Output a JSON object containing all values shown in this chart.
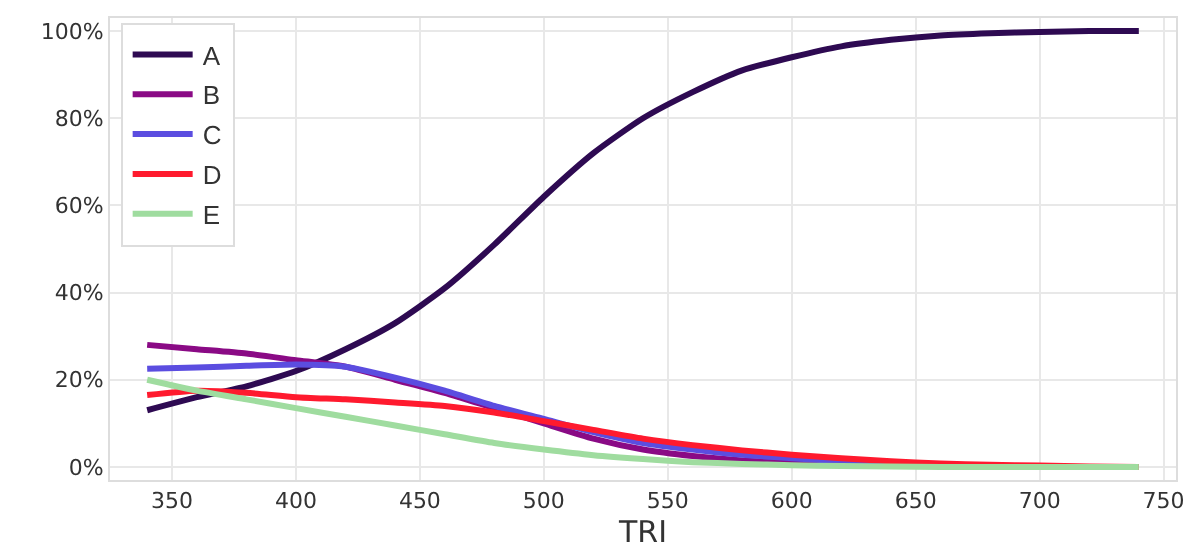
{
  "chart_data": {
    "type": "line",
    "xlabel": "TRI",
    "x": [
      340,
      360,
      380,
      400,
      420,
      440,
      460,
      480,
      500,
      520,
      540,
      560,
      580,
      600,
      620,
      640,
      660,
      680,
      700,
      720,
      740
    ],
    "series": [
      {
        "name": "A",
        "color": "#2e0a52",
        "values": [
          13,
          16,
          18.5,
          22,
          27,
          33,
          41,
          51,
          62,
          72,
          80,
          86,
          91,
          94,
          96.5,
          98,
          99,
          99.5,
          99.8,
          100,
          100
        ]
      },
      {
        "name": "B",
        "color": "#8a0a85",
        "values": [
          28,
          27,
          26,
          24.5,
          23,
          20,
          17,
          13.5,
          10,
          6.5,
          4,
          2.5,
          1.5,
          1,
          0.6,
          0.4,
          0.2,
          null,
          null,
          null,
          null
        ]
      },
      {
        "name": "C",
        "color": "#5b4de0",
        "values": [
          22.5,
          22.8,
          23.2,
          23.5,
          23,
          20.5,
          17.5,
          14,
          11,
          8,
          5.5,
          4,
          2.8,
          2,
          1.3,
          0.8,
          null,
          null,
          null,
          null,
          null
        ]
      },
      {
        "name": "D",
        "color": "#ff1a2e",
        "values": [
          16.5,
          17.5,
          17,
          16,
          15.5,
          14.8,
          14,
          12.5,
          10.5,
          8.5,
          6.5,
          5,
          3.8,
          2.8,
          2,
          1.3,
          0.8,
          0.5,
          0.3,
          0.1,
          0
        ]
      },
      {
        "name": "E",
        "color": "#9fdc9f",
        "values": [
          20,
          17.5,
          15.5,
          13.5,
          11.5,
          9.5,
          7.5,
          5.5,
          4,
          2.7,
          1.8,
          1.1,
          0.7,
          0.4,
          0.2,
          0.1,
          0,
          0,
          0,
          0,
          0
        ]
      }
    ],
    "xlim": [
      325,
      755
    ],
    "xticks": [
      350,
      400,
      450,
      500,
      550,
      600,
      650,
      700,
      750
    ],
    "ylim": [
      -3,
      103
    ],
    "yticks": [
      {
        "value": 0,
        "label": "0%"
      },
      {
        "value": 20,
        "label": "20%"
      },
      {
        "value": 40,
        "label": "40%"
      },
      {
        "value": 60,
        "label": "60%"
      },
      {
        "value": 80,
        "label": "80%"
      },
      {
        "value": 100,
        "label": "100%"
      }
    ],
    "grid": true,
    "legend": "top left",
    "line_style": "solid"
  }
}
